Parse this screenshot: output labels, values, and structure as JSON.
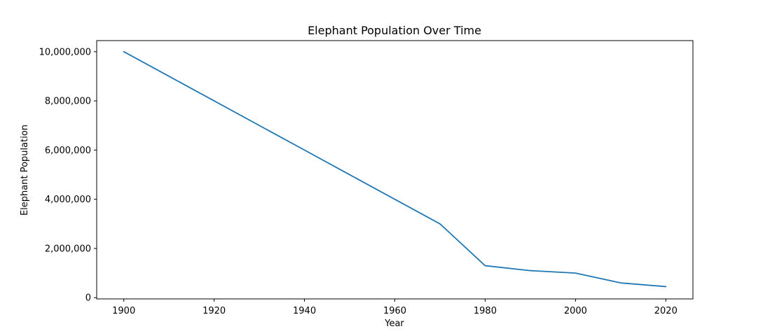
{
  "chart_data": {
    "type": "line",
    "title": "Elephant Population Over Time",
    "xlabel": "Year",
    "ylabel": "Elephant Population",
    "x": [
      1900,
      1910,
      1920,
      1930,
      1940,
      1950,
      1960,
      1970,
      1980,
      1990,
      2000,
      2010,
      2020
    ],
    "series": [
      {
        "values": [
          10000000,
          9000000,
          8000000,
          7000000,
          6000000,
          5000000,
          4000000,
          3000000,
          1300000,
          1100000,
          1000000,
          600000,
          450000
        ],
        "color": "#1f77b4"
      }
    ],
    "xlim": [
      1894,
      2026
    ],
    "ylim": [
      -50000,
      10450000
    ],
    "xticks": [
      1900,
      1920,
      1940,
      1960,
      1980,
      2000,
      2020
    ],
    "xtick_labels": [
      "1900",
      "1920",
      "1940",
      "1960",
      "1980",
      "2000",
      "2020"
    ],
    "yticks": [
      0,
      2000000,
      4000000,
      6000000,
      8000000,
      10000000
    ],
    "ytick_labels": [
      "0",
      "2,000,000",
      "4,000,000",
      "6,000,000",
      "8,000,000",
      "10,000,000"
    ],
    "grid": false,
    "legend": "none"
  }
}
